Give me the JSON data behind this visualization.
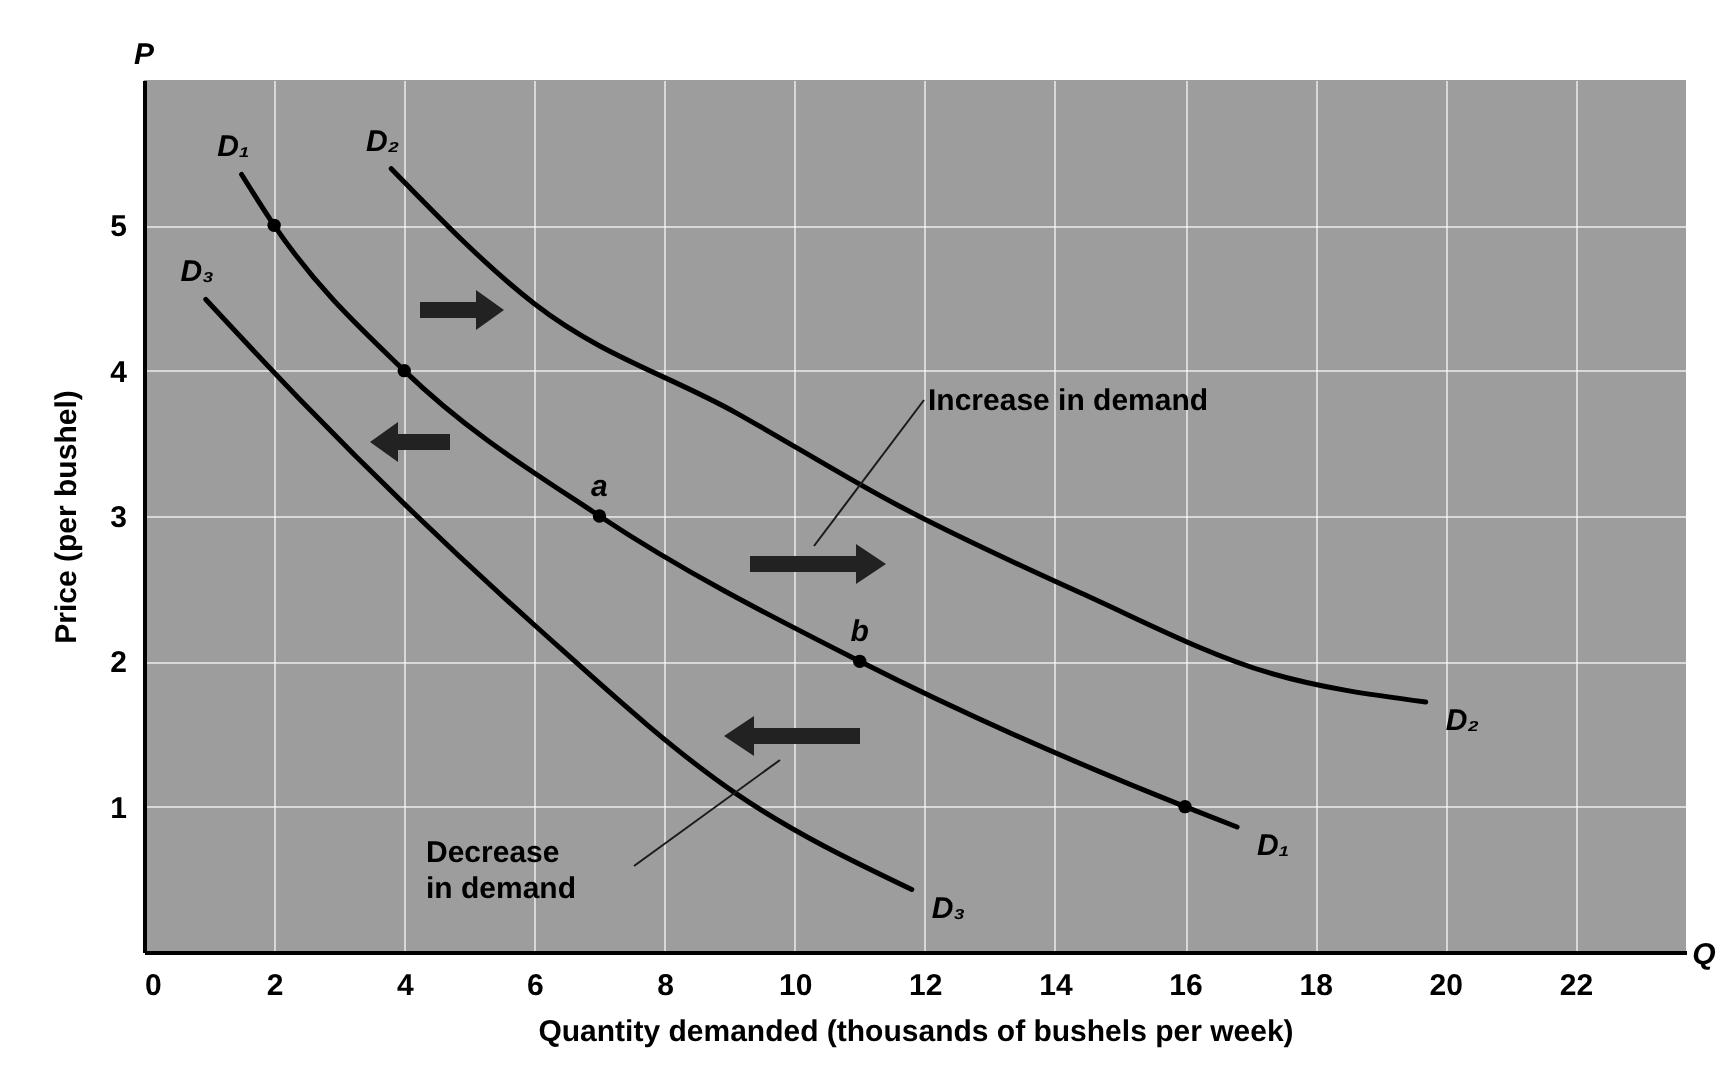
{
  "chart_data": {
    "type": "line",
    "xlabel": "Quantity demanded (thousands of bushels per week)",
    "ylabel": "Price (per bushel)",
    "xlim": [
      0,
      23.7
    ],
    "ylim": [
      0,
      6
    ],
    "xticks": [
      0,
      2,
      4,
      6,
      8,
      10,
      12,
      14,
      16,
      18,
      20,
      22
    ],
    "yticks": [
      1,
      2,
      3,
      4,
      5
    ],
    "grid": true,
    "marker": "none",
    "line_style": "solid",
    "series": [
      {
        "name": "D₁",
        "color": "#000000",
        "x": [
          1.5,
          2,
          4,
          7,
          11,
          16,
          16.8
        ],
        "values": [
          5.35,
          5,
          4,
          3,
          2,
          1,
          0.86
        ]
      },
      {
        "name": "D₂",
        "color": "#000000",
        "x": [
          3.8,
          6,
          9.1,
          11.6,
          14.4,
          17.3,
          19.7
        ],
        "values": [
          5.39,
          4.46,
          3.71,
          3.07,
          2.47,
          1.92,
          1.72
        ]
      },
      {
        "name": "D₃",
        "color": "#000000",
        "x": [
          0.95,
          2.4,
          6,
          9.1,
          11.8
        ],
        "values": [
          4.49,
          3.8,
          2.25,
          1.09,
          0.43
        ]
      },
      {
        "type": "scatter",
        "marker": "circle",
        "color": "#000000",
        "x": [
          2,
          4,
          7,
          11,
          16
        ],
        "values": [
          5,
          4,
          3,
          2,
          1
        ],
        "value_labels": [
          null,
          null,
          "a",
          "b",
          null
        ]
      }
    ],
    "annotations": [
      "P",
      "Q",
      "Increase in demand",
      "Decrease\nin demand"
    ]
  }
}
